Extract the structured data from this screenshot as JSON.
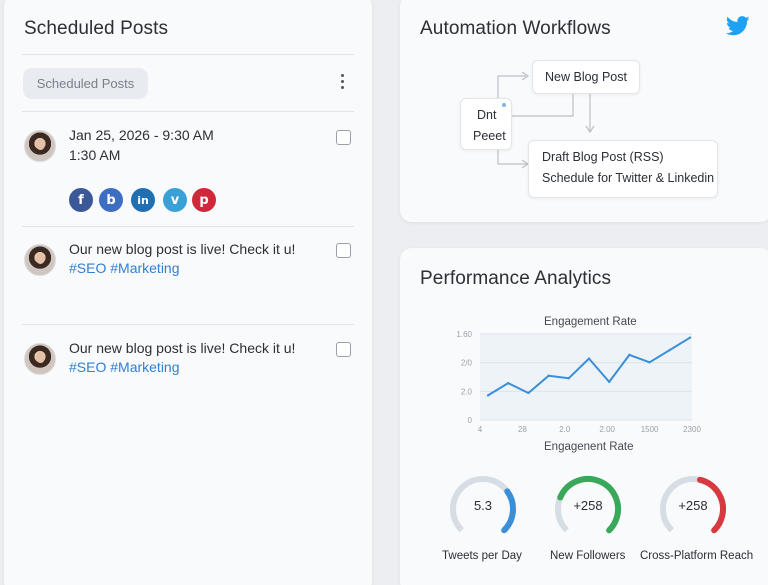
{
  "scheduled": {
    "title": "Scheduled Posts",
    "chip": "Scheduled Posts",
    "posts": [
      {
        "line1": "Jan 25, 2026 - 9:30 AM",
        "line2": "1:30 AM",
        "tags": ""
      },
      {
        "line1": "Our new blog post is live! Check it u!",
        "line2": "",
        "tags": "#SEO #Marketing"
      },
      {
        "line1": "Our new blog post is live! Check it u!",
        "line2": "",
        "tags": "#SEO #Marketing"
      }
    ],
    "social_icons": [
      {
        "name": "facebook-icon",
        "glyph": "f",
        "color": "#3b5998"
      },
      {
        "name": "blogger-icon",
        "glyph": "b",
        "color": "#3d6ec2"
      },
      {
        "name": "linkedin-icon",
        "glyph": "in",
        "color": "#1f6fb2"
      },
      {
        "name": "vimeo-icon",
        "glyph": "v",
        "color": "#3aa1d8"
      },
      {
        "name": "pinterest-icon",
        "glyph": "p",
        "color": "#d0283b"
      }
    ]
  },
  "automation": {
    "title": "Automation Workflows",
    "left_box": [
      "Dnt",
      "Peeet"
    ],
    "top_box": "New Blog Post",
    "bottom_box": [
      "Draft Blog Post (RSS)",
      "Schedule for Twitter & Linkedin"
    ],
    "brand_color": "#1da1f2"
  },
  "performance": {
    "title": "Performance Analytics",
    "accent": "#3b8fd9",
    "gauges": [
      {
        "value": "5.3",
        "label": "Tweets per Day",
        "color": "#3b8fd9",
        "fraction": 0.3
      },
      {
        "value": "+258",
        "label": "New Followers",
        "color": "#3aa85a",
        "fraction": 0.75
      },
      {
        "value": "+258",
        "label": "Cross-Platform Reach",
        "color": "#d6393f",
        "fraction": 0.45
      }
    ]
  },
  "chart_data": {
    "type": "line",
    "title": "Engagement Rate",
    "xlabel": "Engagenent Rate",
    "ylabel": "",
    "y_tick_labels": [
      "0",
      "2.0",
      "2/0",
      "1.60"
    ],
    "x_tick_labels": [
      "4",
      "28",
      "2.0",
      "2.00",
      "1500",
      "2300"
    ],
    "series": [
      {
        "values": [
          20,
          30,
          22,
          36,
          34,
          50,
          31,
          53,
          47,
          57,
          67
        ]
      }
    ],
    "ylim": [
      0,
      70
    ],
    "grid": true
  }
}
